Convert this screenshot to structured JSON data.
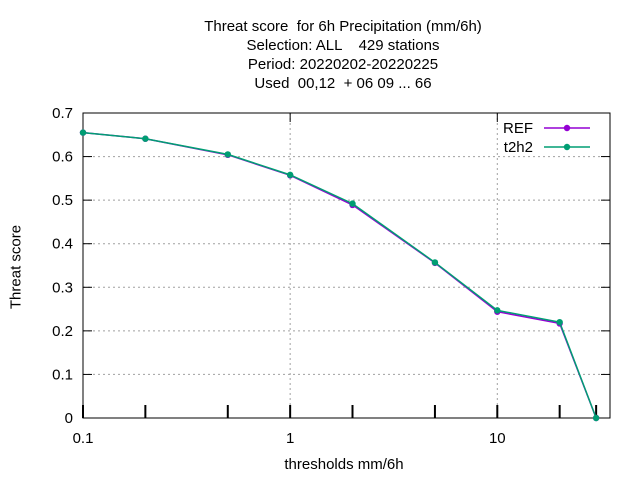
{
  "title_lines": [
    "Threat score  for 6h Precipitation (mm/6h)",
    "Selection: ALL    429 stations",
    "Period: 20220202-20220225",
    "Used  00,12  + 06 09 ... 66"
  ],
  "chart_data": {
    "type": "line",
    "xlabel": "thresholds mm/6h",
    "ylabel": "Threat score",
    "xscale": "log",
    "xlim": [
      0.1,
      35
    ],
    "ylim": [
      0,
      0.7
    ],
    "grid": true,
    "legend_position": "top-right",
    "x_tick_labels": [
      "0.1",
      "1",
      "10"
    ],
    "y_tick_labels": [
      "0",
      "0.1",
      "0.2",
      "0.3",
      "0.4",
      "0.5",
      "0.6",
      "0.7"
    ],
    "x": [
      0.1,
      0.2,
      0.5,
      1,
      2,
      5,
      10,
      20,
      30
    ],
    "series": [
      {
        "name": "REF",
        "color": "#9400d3",
        "values": [
          0.655,
          0.641,
          0.604,
          0.557,
          0.489,
          0.356,
          0.244,
          0.217,
          0.0
        ]
      },
      {
        "name": "t2h2",
        "color": "#009e73",
        "values": [
          0.655,
          0.641,
          0.605,
          0.558,
          0.492,
          0.357,
          0.247,
          0.22,
          0.0
        ]
      }
    ]
  }
}
